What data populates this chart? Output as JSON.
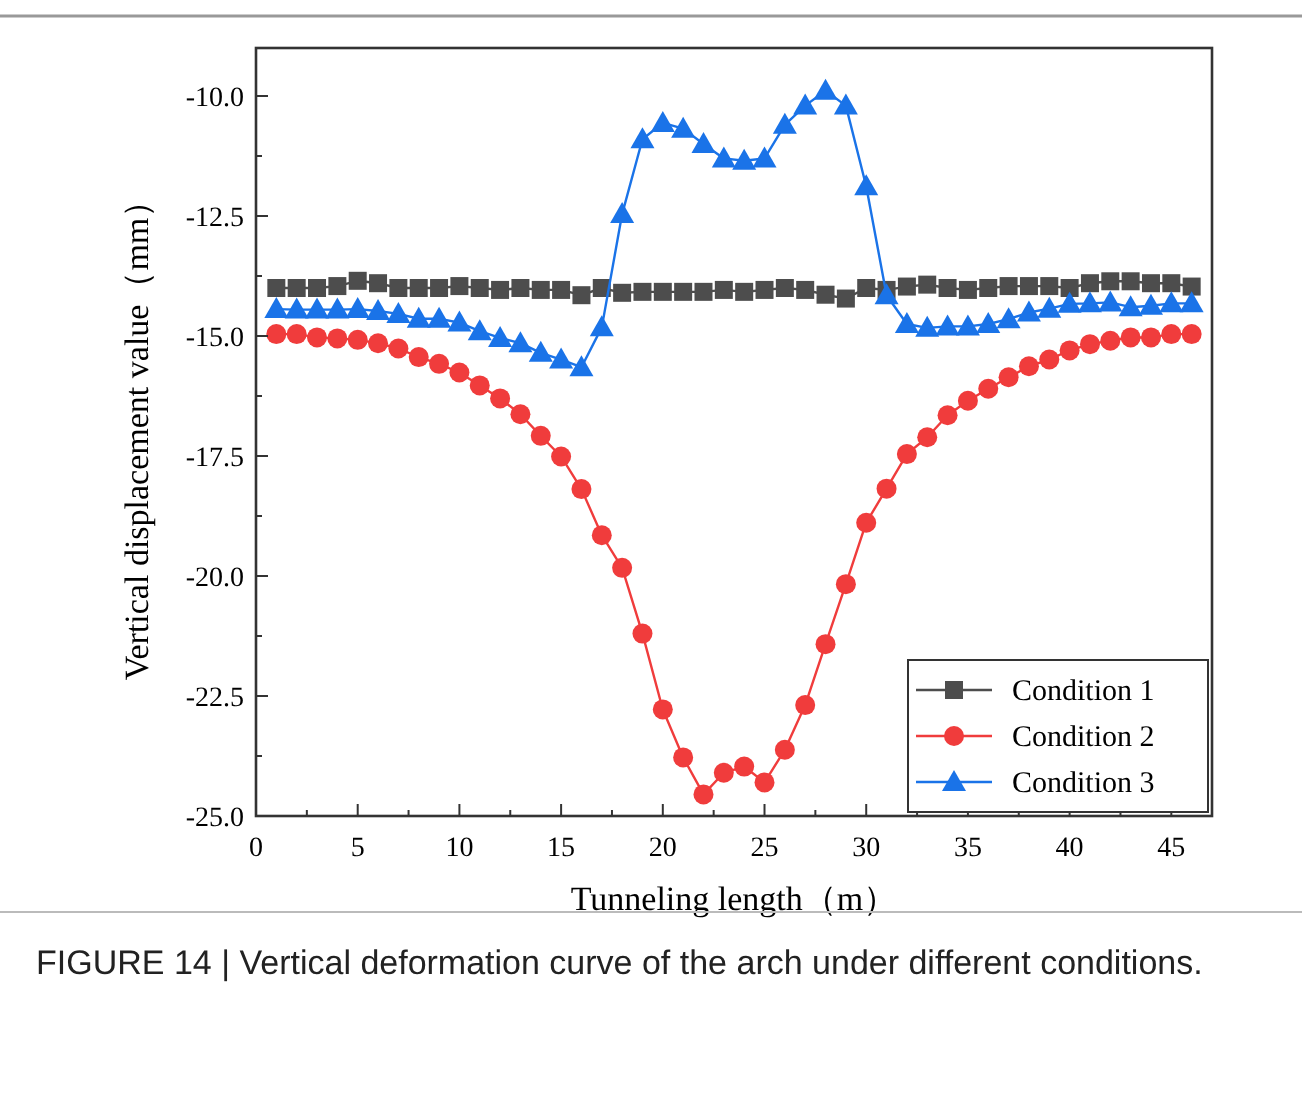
{
  "chart_data": {
    "type": "line",
    "xlabel": "Tunneling length（m）",
    "ylabel": "Vertical displacement value（mm）",
    "annotations": [
      "FIGURE 14 | Vertical deformation curve of the arch under different conditions."
    ],
    "x": [
      1,
      2,
      3,
      4,
      5,
      6,
      7,
      8,
      9,
      10,
      11,
      12,
      13,
      14,
      15,
      16,
      17,
      18,
      19,
      20,
      21,
      22,
      23,
      24,
      25,
      26,
      27,
      28,
      29,
      30,
      31,
      32,
      33,
      34,
      35,
      36,
      37,
      38,
      39,
      40,
      41,
      42,
      43,
      44,
      45,
      46
    ],
    "xlim": [
      0,
      47
    ],
    "ylim": [
      -25,
      -9
    ],
    "xticks": [
      0,
      {
        "value": 2.5,
        "label": null
      },
      5,
      {
        "value": 7.5,
        "label": null
      },
      10,
      {
        "value": 12.5,
        "label": null
      },
      15,
      {
        "value": 17.5,
        "label": null
      },
      20,
      {
        "value": 22.5,
        "label": null
      },
      25,
      {
        "value": 27.5,
        "label": null
      },
      30,
      {
        "value": 32.5,
        "label": null
      },
      35,
      {
        "value": 37.5,
        "label": null
      },
      40,
      {
        "value": 42.5,
        "label": null
      },
      45
    ],
    "yticks": [
      {
        "value": -25,
        "label": "-25.0"
      },
      {
        "value": -23.75,
        "label": null
      },
      {
        "value": -22.5,
        "label": "-22.5"
      },
      {
        "value": -21.25,
        "label": null
      },
      {
        "value": -20,
        "label": "-20.0"
      },
      {
        "value": -18.75,
        "label": null
      },
      {
        "value": -17.5,
        "label": "-17.5"
      },
      {
        "value": -16.25,
        "label": null
      },
      {
        "value": -15,
        "label": "-15.0"
      },
      {
        "value": -13.75,
        "label": null
      },
      {
        "value": -12.5,
        "label": "-12.5"
      },
      {
        "value": -11.25,
        "label": null
      },
      {
        "value": -10,
        "label": "-10.0"
      }
    ],
    "grid": false,
    "legend": "bottom right",
    "line_style": "solid",
    "series": [
      {
        "name": "Condition 1",
        "color": "#4d4d4d",
        "marker": "square",
        "values": [
          -14.0,
          -14.0,
          -14.0,
          -13.96,
          -13.85,
          -13.9,
          -14.0,
          -14.0,
          -14.0,
          -13.96,
          -14.0,
          -14.04,
          -14.0,
          -14.04,
          -14.04,
          -14.15,
          -14.0,
          -14.1,
          -14.08,
          -14.08,
          -14.08,
          -14.08,
          -14.04,
          -14.08,
          -14.04,
          -14.0,
          -14.04,
          -14.14,
          -14.22,
          -14.0,
          -14.04,
          -13.97,
          -13.93,
          -14.0,
          -14.04,
          -14.0,
          -13.96,
          -13.96,
          -13.96,
          -14.0,
          -13.9,
          -13.86,
          -13.86,
          -13.9,
          -13.9,
          -13.97
        ]
      },
      {
        "name": "Condition 2",
        "color": "#f03c3c",
        "marker": "circle",
        "values": [
          -14.96,
          -14.96,
          -15.03,
          -15.05,
          -15.08,
          -15.15,
          -15.26,
          -15.44,
          -15.58,
          -15.76,
          -16.03,
          -16.3,
          -16.63,
          -17.08,
          -17.51,
          -18.19,
          -19.15,
          -19.83,
          -21.2,
          -22.78,
          -23.78,
          -24.55,
          -24.1,
          -23.97,
          -24.3,
          -23.62,
          -22.69,
          -21.42,
          -20.17,
          -18.89,
          -18.18,
          -17.46,
          -17.11,
          -16.65,
          -16.35,
          -16.1,
          -15.86,
          -15.63,
          -15.49,
          -15.3,
          -15.17,
          -15.1,
          -15.03,
          -15.03,
          -14.96,
          -14.96
        ]
      },
      {
        "name": "Condition 3",
        "color": "#1a73e8",
        "marker": "triangle",
        "values": [
          -14.44,
          -14.45,
          -14.45,
          -14.45,
          -14.44,
          -14.48,
          -14.54,
          -14.64,
          -14.64,
          -14.72,
          -14.9,
          -15.04,
          -15.15,
          -15.35,
          -15.49,
          -15.65,
          -14.82,
          -12.46,
          -10.9,
          -10.56,
          -10.68,
          -11.0,
          -11.3,
          -11.35,
          -11.3,
          -10.6,
          -10.2,
          -9.89,
          -10.2,
          -11.88,
          -14.15,
          -14.75,
          -14.83,
          -14.8,
          -14.8,
          -14.75,
          -14.65,
          -14.51,
          -14.43,
          -14.33,
          -14.32,
          -14.3,
          -14.4,
          -14.37,
          -14.32,
          -14.32
        ]
      }
    ]
  }
}
